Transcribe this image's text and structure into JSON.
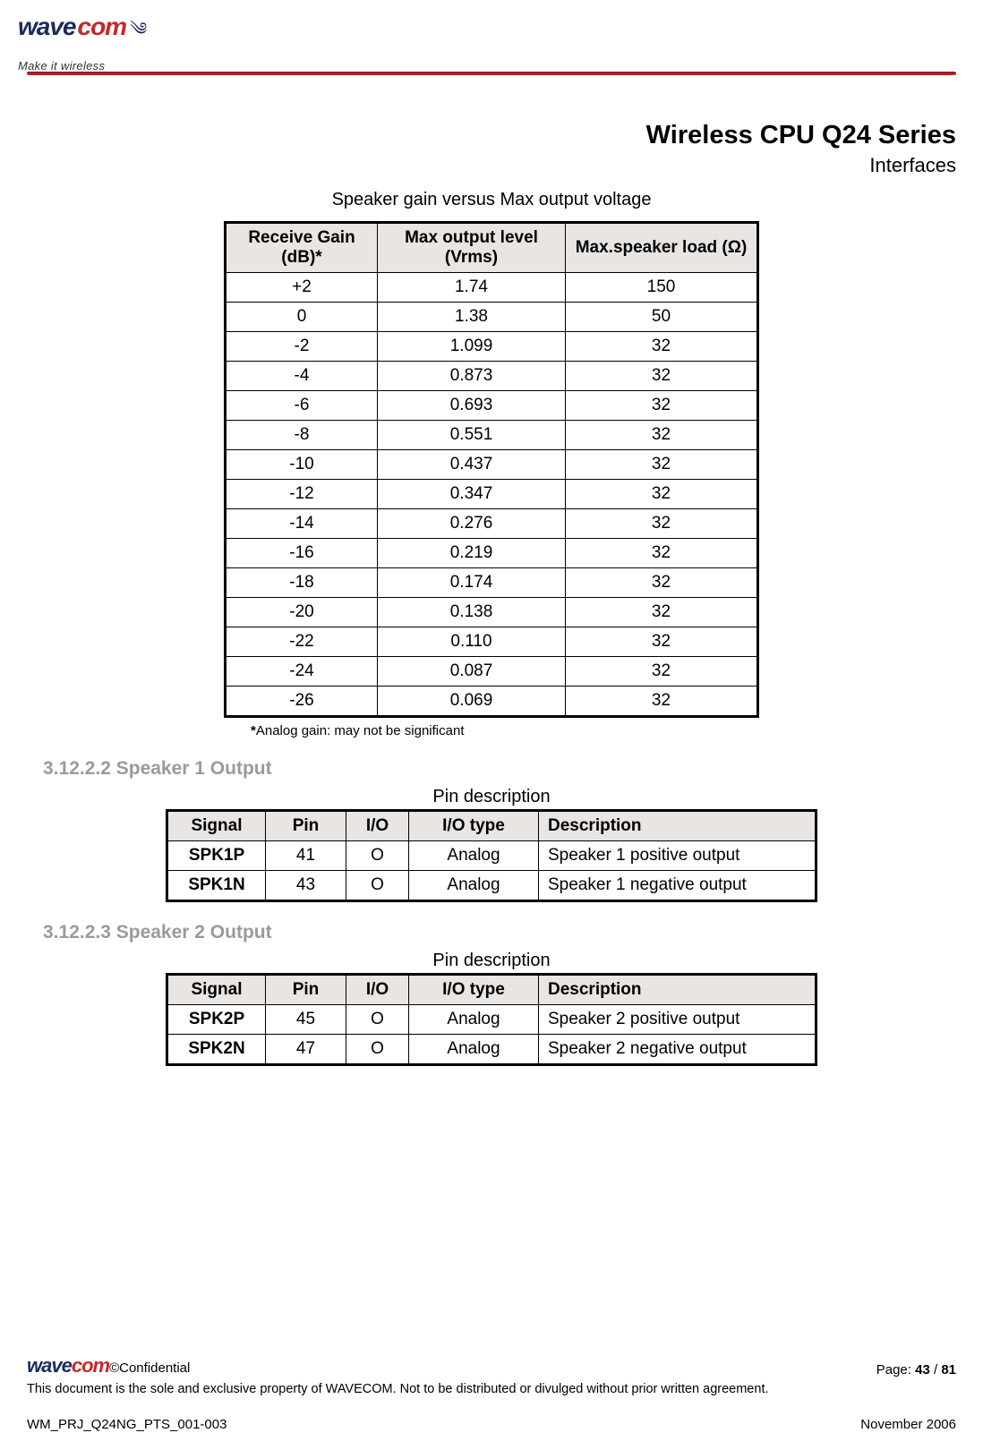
{
  "brand": {
    "part1": "wave",
    "part2": "com",
    "tagline": "Make it wireless"
  },
  "titles": {
    "main": "Wireless CPU Q24 Series",
    "sub": "Interfaces"
  },
  "table1": {
    "caption": "Speaker gain versus Max output voltage",
    "headers": [
      "Receive Gain (dB)*",
      "Max output level (Vrms)",
      "Max.speaker load (Ω)"
    ],
    "rows": [
      [
        "+2",
        "1.74",
        "150"
      ],
      [
        "0",
        "1.38",
        "50"
      ],
      [
        "-2",
        "1.099",
        "32"
      ],
      [
        "-4",
        "0.873",
        "32"
      ],
      [
        "-6",
        "0.693",
        "32"
      ],
      [
        "-8",
        "0.551",
        "32"
      ],
      [
        "-10",
        "0.437",
        "32"
      ],
      [
        "-12",
        "0.347",
        "32"
      ],
      [
        "-14",
        "0.276",
        "32"
      ],
      [
        "-16",
        "0.219",
        "32"
      ],
      [
        "-18",
        "0.174",
        "32"
      ],
      [
        "-20",
        "0.138",
        "32"
      ],
      [
        "-22",
        "0.110",
        "32"
      ],
      [
        "-24",
        "0.087",
        "32"
      ],
      [
        "-26",
        "0.069",
        "32"
      ]
    ],
    "footnote_star": "*",
    "footnote": "Analog gain: may not be significant"
  },
  "sec2": {
    "heading": "3.12.2.2 Speaker 1 Output",
    "caption": "Pin description",
    "headers": [
      "Signal",
      "Pin",
      "I/O",
      "I/O type",
      "Description"
    ],
    "rows": [
      [
        "SPK1P",
        "41",
        "O",
        "Analog",
        "Speaker 1 positive output"
      ],
      [
        "SPK1N",
        "43",
        "O",
        "Analog",
        "Speaker 1 negative output"
      ]
    ]
  },
  "sec3": {
    "heading": "3.12.2.3 Speaker 2 Output",
    "caption": "Pin description",
    "headers": [
      "Signal",
      "Pin",
      "I/O",
      "I/O type",
      "Description"
    ],
    "rows": [
      [
        "SPK2P",
        "45",
        "O",
        "Analog",
        "Speaker 2 positive output"
      ],
      [
        "SPK2N",
        "47",
        "O",
        "Analog",
        "Speaker 2 negative output"
      ]
    ]
  },
  "footer": {
    "confidential": "©Confidential",
    "page_label": "Page: ",
    "page_cur": "43",
    "page_sep": " / ",
    "page_tot": "81",
    "disclaimer": "This document is the sole and exclusive property of WAVECOM. Not to be distributed or divulged without prior written agreement.",
    "docref": "WM_PRJ_Q24NG_PTS_001-003",
    "date": "November 2006"
  }
}
